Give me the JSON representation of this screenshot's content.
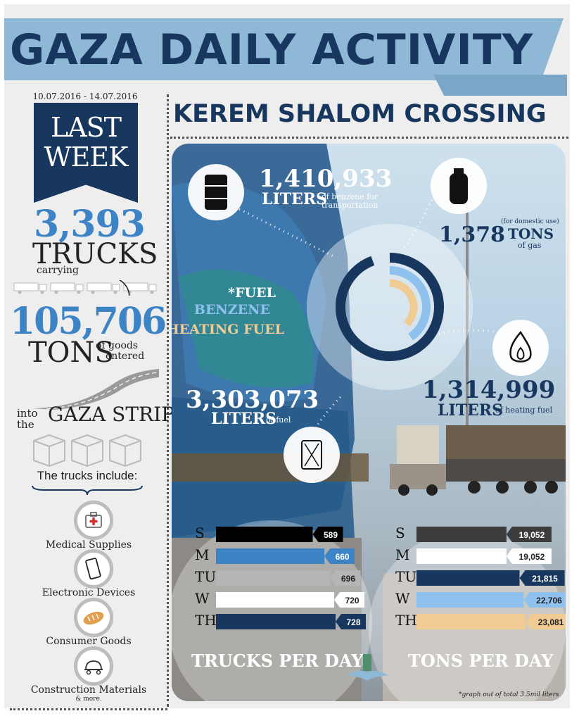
{
  "title": "GAZA DAILY ACTIVITY",
  "date_range": "10.07.2016 - 14.07.2016",
  "last_week": [
    "LAST",
    "WEEK"
  ],
  "left_summary": {
    "trucks_count": "3,393",
    "trucks_label": "TRUCKS",
    "carrying": "carrying",
    "tons_count": "105,706",
    "tons_label": "TONS",
    "goods_label": [
      "of goods",
      "entered"
    ],
    "into_label": [
      "into",
      "the"
    ],
    "gaza_strip": "GAZA STRIP",
    "include_label": "The trucks include:",
    "categories": [
      {
        "label": "Medical Supplies",
        "icon": "medical-kit-icon"
      },
      {
        "label": "Electronic Devices",
        "icon": "phone-icon"
      },
      {
        "label": "Consumer Goods",
        "icon": "bread-icon"
      },
      {
        "label": "Construction Materials",
        "icon": "cement-mixer-icon"
      }
    ],
    "more": "& more."
  },
  "crossing_title": "KEREM SHALOM CROSSING",
  "stats": {
    "benzene": {
      "value": "1,410,933",
      "unit": "LITERS",
      "desc": [
        "of benzene for",
        "transportation"
      ]
    },
    "gas": {
      "value": "1,378",
      "unit": "TONS",
      "note": "(for domestic use)",
      "desc": "of gas"
    },
    "heating": {
      "value": "1,314,999",
      "unit": "LITERS",
      "desc": "of heating fuel"
    },
    "fuel": {
      "value": "3,303,073",
      "unit": "LITERS",
      "desc": "of fuel"
    }
  },
  "footnote": "*graph out of total 3.5mil liters",
  "colors": {
    "navy": "#17375e",
    "blue": "#3d84c6",
    "light_blue": "#8fc1ee",
    "tan": "#f0cb94",
    "gray": "#b5b5b5",
    "dark": "#3c3c3c"
  },
  "chart_data": [
    {
      "type": "pie",
      "subtype": "radial-bar",
      "note": "*graph out of total 3.5mil liters",
      "total": 3500000,
      "series": [
        {
          "name": "*FUEL",
          "value": 3303073,
          "color": "#17375e"
        },
        {
          "name": "BENZENE",
          "value": 1410933,
          "color": "#8fc1ee"
        },
        {
          "name": "HEATING FUEL",
          "value": 1314999,
          "color": "#f0cb94"
        }
      ]
    },
    {
      "type": "bar",
      "orientation": "horizontal",
      "title": "TRUCKS PER DAY",
      "categories": [
        "S",
        "M",
        "TU",
        "W",
        "TH"
      ],
      "values": [
        589,
        660,
        696,
        720,
        728
      ],
      "value_labels": [
        "589",
        "660",
        "696",
        "720",
        "728"
      ],
      "colors": [
        "#000000",
        "#3d84c6",
        "#b5b5b5",
        "#ffffff",
        "#17375e"
      ],
      "xlim": [
        0,
        728
      ]
    },
    {
      "type": "bar",
      "orientation": "horizontal",
      "title": "TONS PER DAY",
      "categories": [
        "S",
        "M",
        "TU",
        "W",
        "TH"
      ],
      "values": [
        19052,
        19052,
        21815,
        22706,
        23081
      ],
      "value_labels": [
        "19,052",
        "19,052",
        "21,815",
        "22,706",
        "23,081"
      ],
      "colors": [
        "#3c3c3c",
        "#ffffff",
        "#17375e",
        "#8fc1ee",
        "#f0cb94"
      ],
      "xlim": [
        0,
        23081
      ]
    }
  ]
}
